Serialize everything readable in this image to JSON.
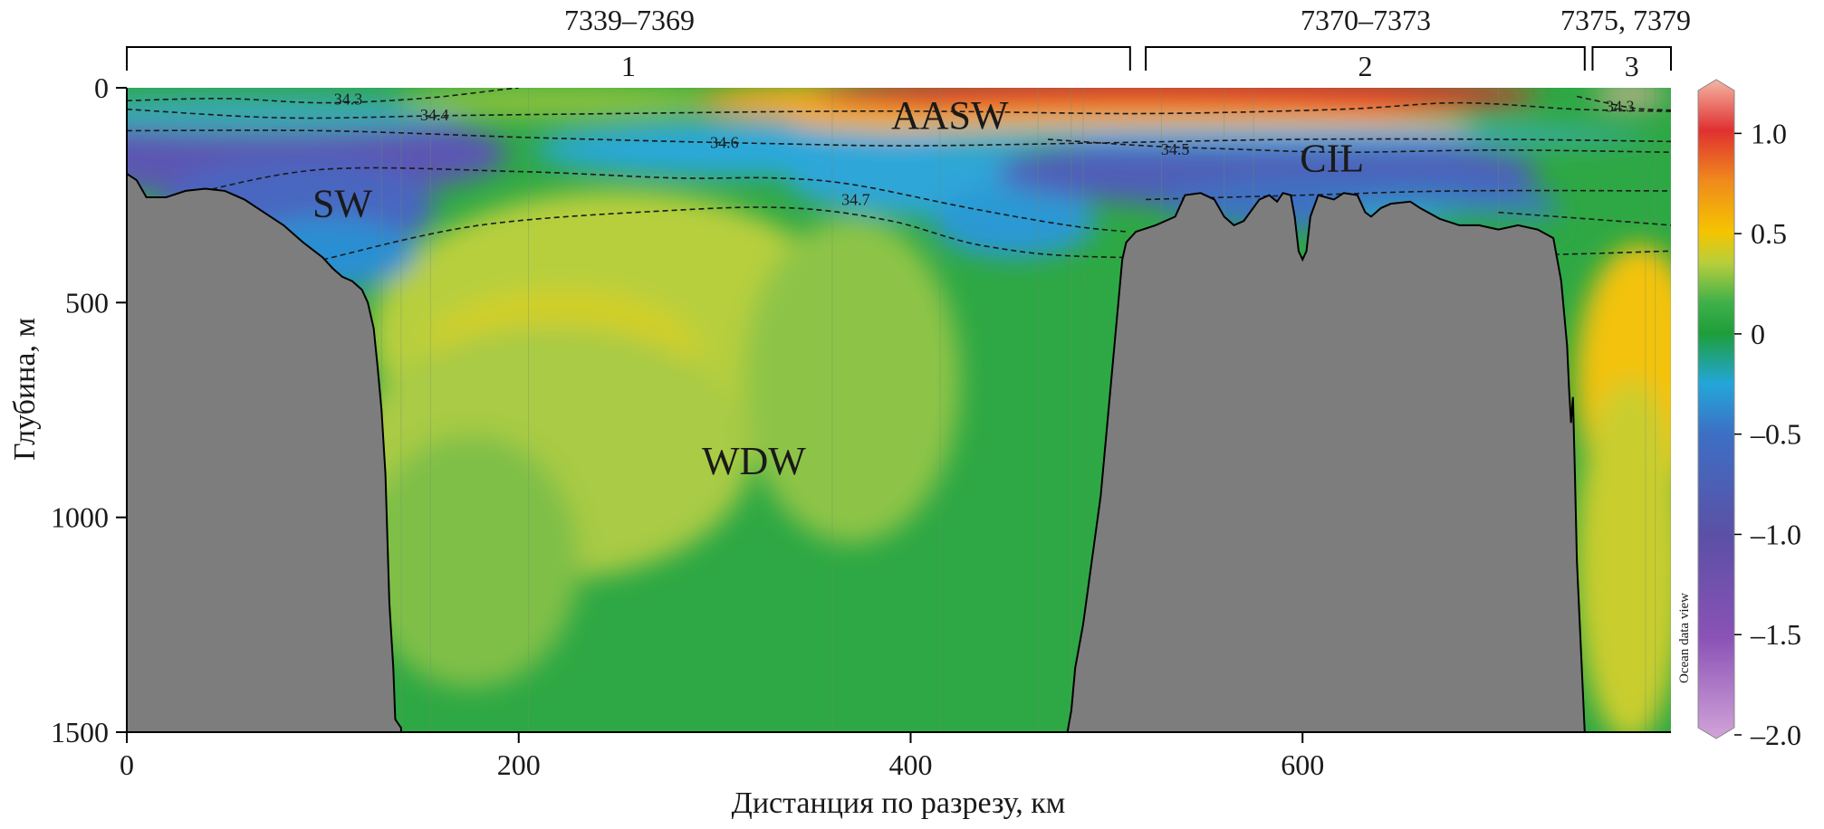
{
  "chart_data": {
    "type": "heatmap",
    "xlabel": "Дистанция по разрезу, км",
    "ylabel": "Глубина, м",
    "xlim": [
      0,
      788
    ],
    "ylim": [
      0,
      1500
    ],
    "y_inverted": true,
    "x_ticks": [
      0,
      200,
      400,
      600
    ],
    "y_ticks": [
      0,
      500,
      1000,
      1500
    ],
    "colorbar": {
      "ticks": [
        "1.0",
        "0.5",
        "0",
        "–0.5",
        "–1.0",
        "–1.5",
        "–2.0"
      ],
      "tick_values": [
        1.0,
        0.5,
        0,
        -0.5,
        -1.0,
        -1.5,
        -2.0
      ],
      "range": [
        -2.0,
        1.25
      ],
      "stops": [
        {
          "value": 1.25,
          "color": "#f4b6a3"
        },
        {
          "value": 1.0,
          "color": "#e03030"
        },
        {
          "value": 0.75,
          "color": "#f08a1c"
        },
        {
          "value": 0.5,
          "color": "#f5c400"
        },
        {
          "value": 0.35,
          "color": "#b9cf3a"
        },
        {
          "value": 0.15,
          "color": "#3fb04a"
        },
        {
          "value": 0.0,
          "color": "#1e9e3a"
        },
        {
          "value": -0.25,
          "color": "#23a6d9"
        },
        {
          "value": -0.5,
          "color": "#3d6fc4"
        },
        {
          "value": -1.0,
          "color": "#5b50a5"
        },
        {
          "value": -1.5,
          "color": "#8a52b6"
        },
        {
          "value": -2.0,
          "color": "#d2a3d8"
        }
      ]
    },
    "watermark": "Ocean data view",
    "sections": [
      {
        "number": "1",
        "stations": "7339–7369",
        "x_range": [
          0,
          512
        ]
      },
      {
        "number": "2",
        "stations": "7370–7373",
        "x_range": [
          520,
          744
        ]
      },
      {
        "number": "3",
        "stations": "7375, 7379",
        "x_range": [
          748,
          788
        ]
      }
    ],
    "station_x": [
      130,
      140,
      155,
      205,
      360,
      415,
      465,
      482,
      488,
      528,
      560,
      575,
      700,
      775,
      780,
      788
    ],
    "water_masses": [
      {
        "label": "AASW",
        "x": 420,
        "depth": 95
      },
      {
        "label": "SW",
        "x": 110,
        "depth": 300
      },
      {
        "label": "WDW",
        "x": 320,
        "depth": 900
      },
      {
        "label": "CIL",
        "x": 615,
        "depth": 195
      }
    ],
    "isohalines": [
      {
        "label": "34.3",
        "label_x": 113,
        "label_depth": 28,
        "points": [
          [
            0,
            30
          ],
          [
            50,
            25
          ],
          [
            100,
            35
          ],
          [
            150,
            25
          ],
          [
            190,
            5
          ],
          [
            200,
            0
          ]
        ]
      },
      {
        "label": "34.4",
        "label_x": 157,
        "label_depth": 65,
        "points": [
          [
            0,
            50
          ],
          [
            80,
            70
          ],
          [
            160,
            65
          ],
          [
            250,
            60
          ],
          [
            350,
            55
          ],
          [
            420,
            55
          ],
          [
            520,
            60
          ],
          [
            620,
            50
          ],
          [
            680,
            35
          ],
          [
            740,
            50
          ],
          [
            788,
            55
          ]
        ]
      },
      {
        "label": "34.6",
        "label_x": 305,
        "label_depth": 130,
        "points": [
          [
            0,
            100
          ],
          [
            100,
            100
          ],
          [
            200,
            115
          ],
          [
            280,
            125
          ],
          [
            330,
            130
          ],
          [
            400,
            135
          ],
          [
            500,
            128
          ],
          [
            600,
            120
          ],
          [
            700,
            120
          ],
          [
            788,
            125
          ]
        ]
      },
      {
        "label": "34.5",
        "label_x": 535,
        "label_depth": 145,
        "points": [
          [
            470,
            120
          ],
          [
            520,
            135
          ],
          [
            560,
            142
          ],
          [
            620,
            150
          ],
          [
            700,
            145
          ],
          [
            788,
            150
          ]
        ]
      },
      {
        "label": "34.7",
        "label_x": 372,
        "label_depth": 262,
        "points": [
          [
            30,
            250
          ],
          [
            100,
            190
          ],
          [
            200,
            195
          ],
          [
            280,
            210
          ],
          [
            330,
            210
          ],
          [
            370,
            225
          ],
          [
            430,
            280
          ],
          [
            480,
            320
          ],
          [
            510,
            335
          ]
        ]
      },
      {
        "label": "",
        "label_x": 0,
        "label_depth": 0,
        "points": [
          [
            100,
            400
          ],
          [
            180,
            320
          ],
          [
            280,
            285
          ],
          [
            340,
            280
          ],
          [
            390,
            310
          ],
          [
            440,
            370
          ],
          [
            510,
            395
          ],
          [
            700,
            390
          ],
          [
            788,
            380
          ]
        ]
      },
      {
        "label": "",
        "label_x": 0,
        "label_depth": 0,
        "points": [
          [
            520,
            260
          ],
          [
            600,
            250
          ],
          [
            680,
            240
          ],
          [
            788,
            240
          ]
        ]
      },
      {
        "label": "34.3",
        "label_x": 762,
        "label_depth": 45,
        "points": [
          [
            740,
            20
          ],
          [
            755,
            35
          ],
          [
            770,
            48
          ],
          [
            788,
            52
          ]
        ]
      },
      {
        "label": "",
        "label_x": 0,
        "label_depth": 0,
        "points": [
          [
            700,
            290
          ],
          [
            760,
            310
          ],
          [
            788,
            320
          ]
        ]
      }
    ],
    "bathymetry": [
      [
        0,
        200
      ],
      [
        5,
        215
      ],
      [
        10,
        255
      ],
      [
        20,
        255
      ],
      [
        30,
        240
      ],
      [
        40,
        235
      ],
      [
        50,
        240
      ],
      [
        60,
        260
      ],
      [
        70,
        290
      ],
      [
        80,
        320
      ],
      [
        90,
        360
      ],
      [
        100,
        395
      ],
      [
        105,
        420
      ],
      [
        110,
        440
      ],
      [
        115,
        450
      ],
      [
        120,
        470
      ],
      [
        123,
        500
      ],
      [
        126,
        560
      ],
      [
        128,
        650
      ],
      [
        130,
        750
      ],
      [
        132,
        900
      ],
      [
        133,
        1050
      ],
      [
        134,
        1200
      ],
      [
        136,
        1350
      ],
      [
        137,
        1470
      ],
      [
        140,
        1490
      ],
      [
        140,
        1500
      ],
      [
        480,
        1500
      ],
      [
        482,
        1450
      ],
      [
        484,
        1350
      ],
      [
        488,
        1250
      ],
      [
        491,
        1150
      ],
      [
        494,
        1050
      ],
      [
        497,
        950
      ],
      [
        500,
        800
      ],
      [
        503,
        650
      ],
      [
        506,
        500
      ],
      [
        508,
        400
      ],
      [
        510,
        360
      ],
      [
        515,
        335
      ],
      [
        525,
        320
      ],
      [
        535,
        300
      ],
      [
        540,
        250
      ],
      [
        548,
        245
      ],
      [
        555,
        260
      ],
      [
        560,
        300
      ],
      [
        565,
        320
      ],
      [
        570,
        310
      ],
      [
        578,
        260
      ],
      [
        583,
        250
      ],
      [
        587,
        265
      ],
      [
        590,
        245
      ],
      [
        594,
        250
      ],
      [
        596,
        300
      ],
      [
        598,
        380
      ],
      [
        600,
        400
      ],
      [
        602,
        380
      ],
      [
        604,
        300
      ],
      [
        608,
        250
      ],
      [
        612,
        255
      ],
      [
        616,
        260
      ],
      [
        621,
        245
      ],
      [
        628,
        250
      ],
      [
        632,
        290
      ],
      [
        635,
        300
      ],
      [
        640,
        280
      ],
      [
        645,
        270
      ],
      [
        655,
        265
      ],
      [
        660,
        280
      ],
      [
        670,
        305
      ],
      [
        680,
        320
      ],
      [
        690,
        320
      ],
      [
        700,
        330
      ],
      [
        710,
        320
      ],
      [
        720,
        330
      ],
      [
        728,
        350
      ],
      [
        732,
        450
      ],
      [
        735,
        600
      ],
      [
        736,
        700
      ],
      [
        737,
        780
      ],
      [
        738,
        720
      ],
      [
        739,
        900
      ],
      [
        740,
        1100
      ],
      [
        742,
        1300
      ],
      [
        744,
        1500
      ]
    ]
  }
}
